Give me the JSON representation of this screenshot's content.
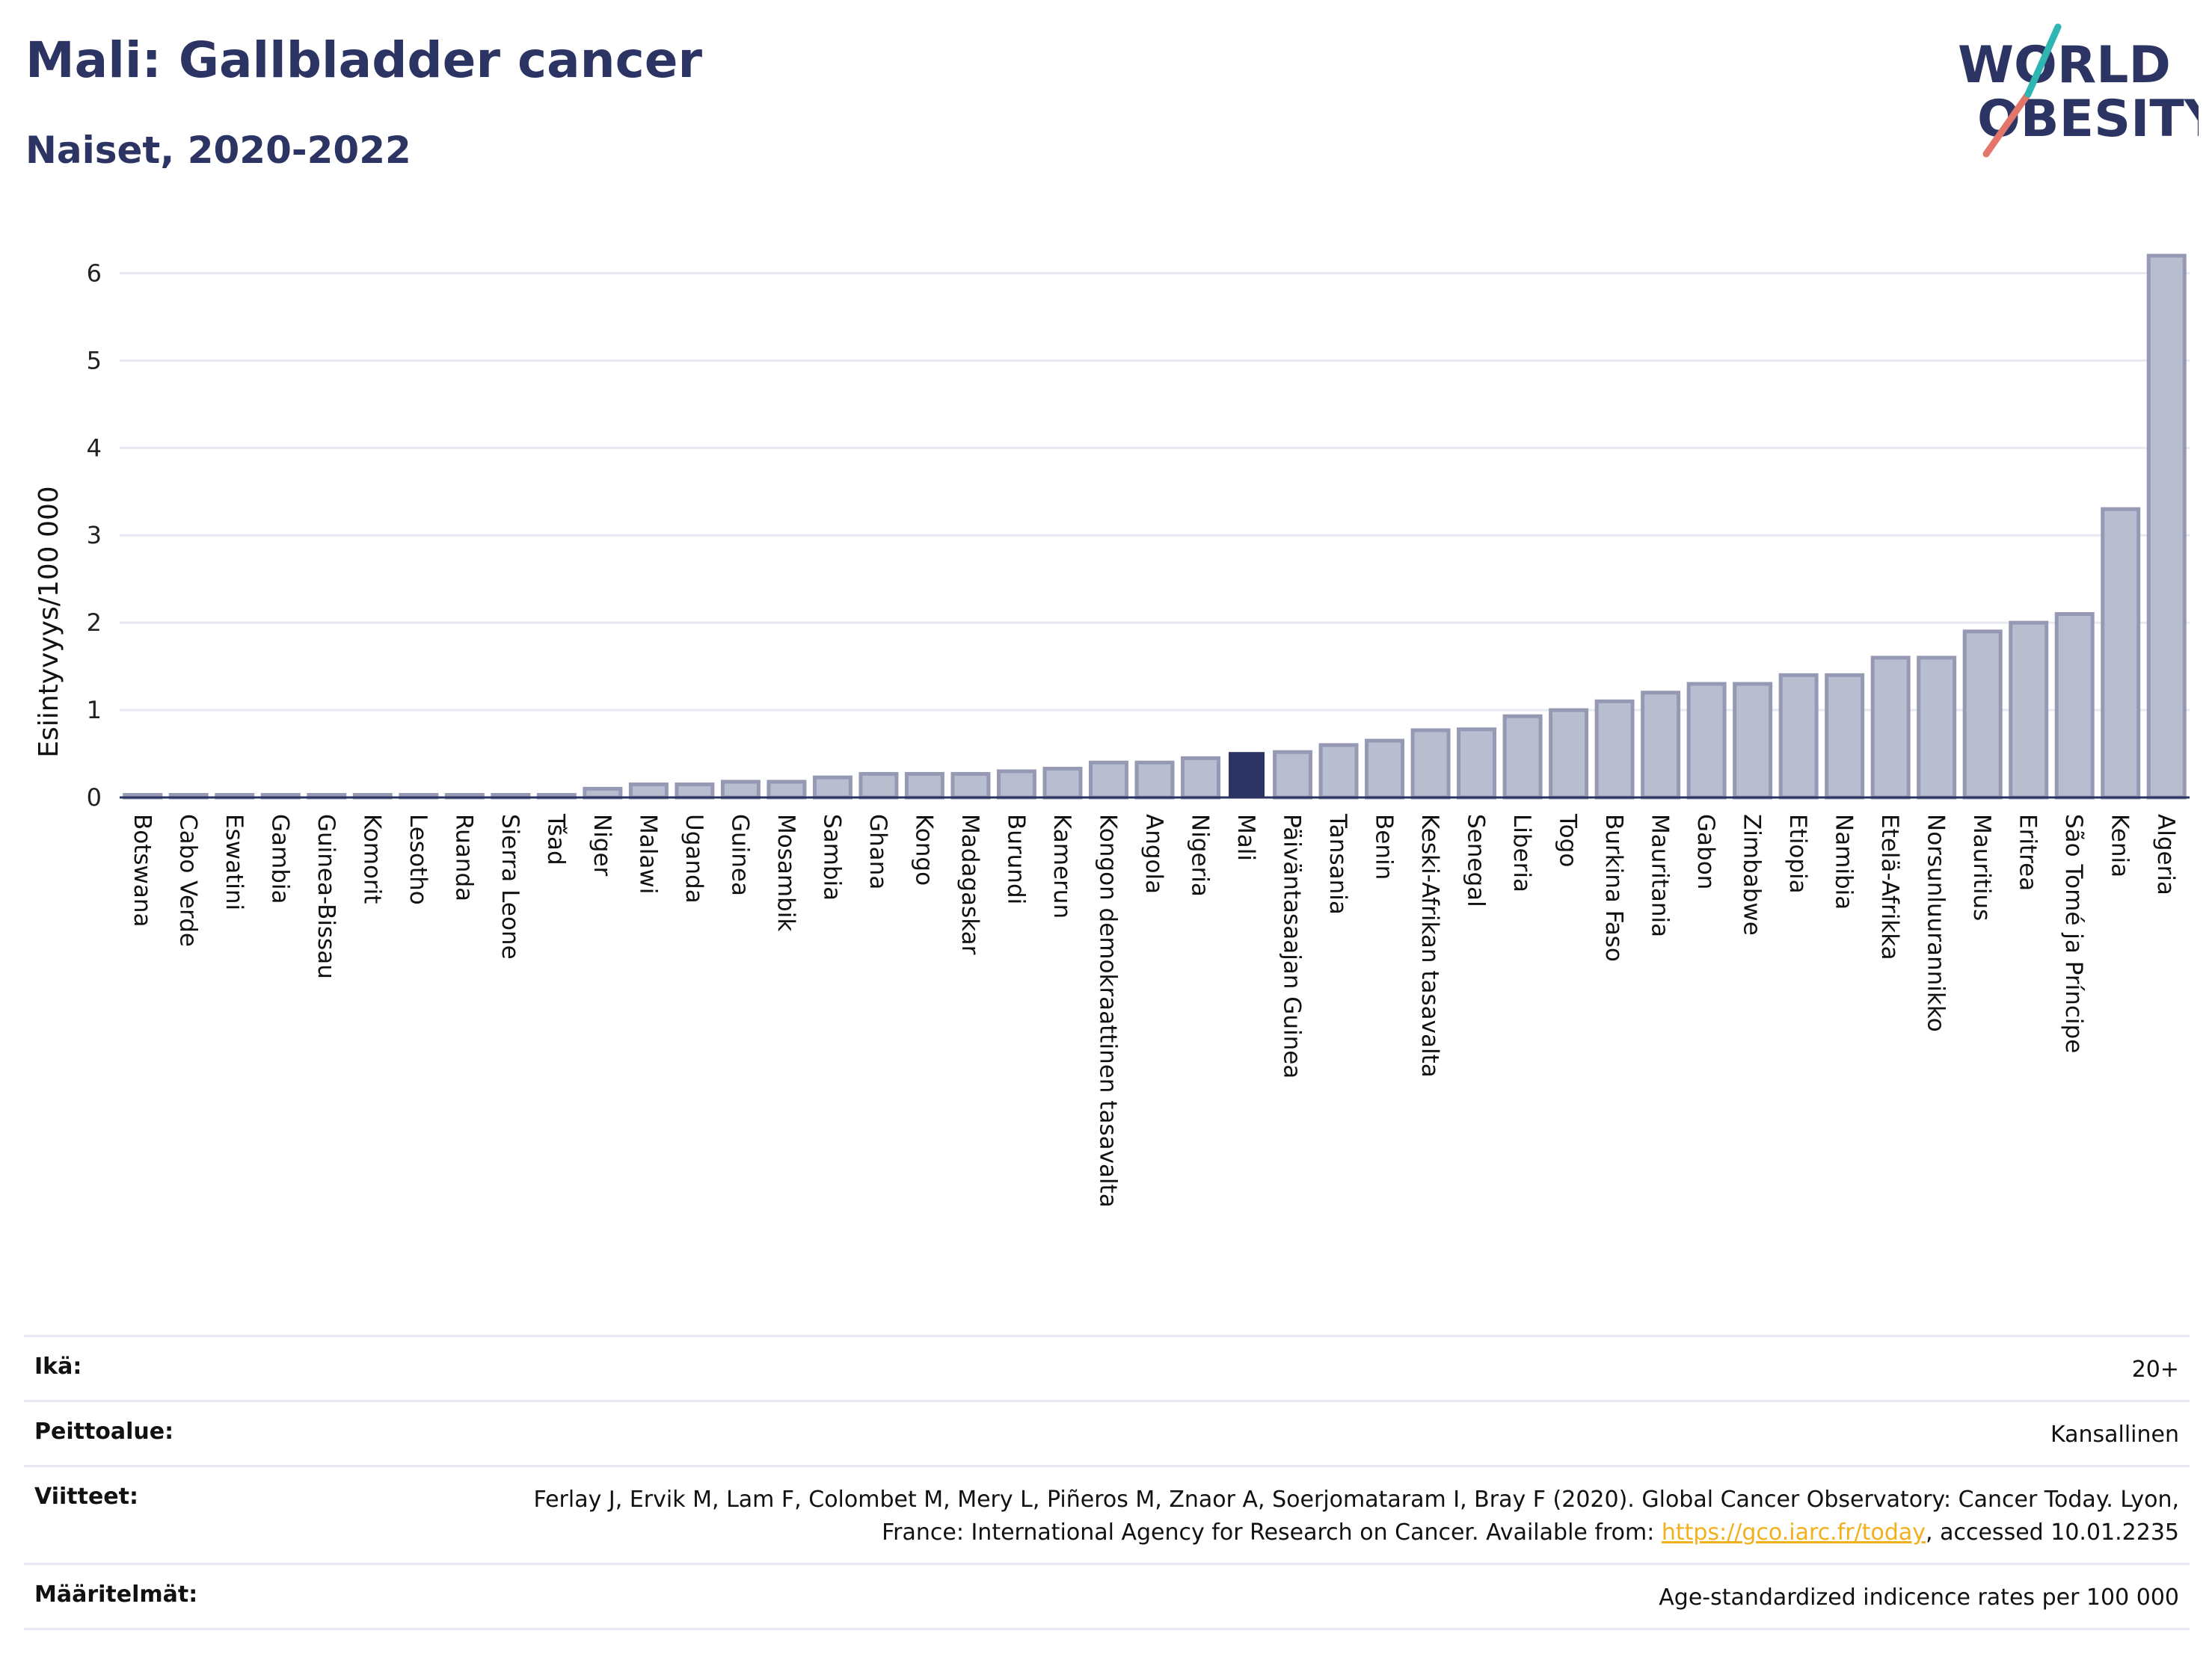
{
  "header": {
    "title": "Mali: Gallbladder cancer",
    "subtitle": "Naiset, 2020-2022"
  },
  "logo": {
    "line1": "WORLD",
    "line2": "OBESITY",
    "colors": [
      "#2b3462",
      "#e4756b",
      "#2fb6b3"
    ]
  },
  "colors": {
    "bar": "#b9bdd0",
    "bar_border": "#9599b3",
    "highlight": "#2b3462",
    "grid": "#e7e9f0"
  },
  "chart_data": {
    "type": "bar",
    "ylabel": "Esiintyvyys/100 000",
    "ylim": [
      0,
      6.5
    ],
    "yticks": [
      0,
      1,
      2,
      3,
      4,
      5,
      6
    ],
    "highlight": "Mali",
    "categories": [
      "Botswana",
      "Cabo Verde",
      "Eswatini",
      "Gambia",
      "Guinea-Bissau",
      "Komorit",
      "Lesotho",
      "Ruanda",
      "Sierra Leone",
      "Tšad",
      "Niger",
      "Malawi",
      "Uganda",
      "Guinea",
      "Mosambik",
      "Sambia",
      "Ghana",
      "Kongo",
      "Madagaskar",
      "Burundi",
      "Kamerun",
      "Kongon demokraattinen tasavalta",
      "Angola",
      "Nigeria",
      "Mali",
      "Päiväntasaajan Guinea",
      "Tansania",
      "Benin",
      "Keski-Afrikan tasavalta",
      "Senegal",
      "Liberia",
      "Togo",
      "Burkina Faso",
      "Mauritania",
      "Gabon",
      "Zimbabwe",
      "Etiopia",
      "Namibia",
      "Etelä-Afrikka",
      "Norsunluurannikko",
      "Mauritius",
      "Eritrea",
      "São Tomé ja Príncipe",
      "Kenia",
      "Algeria"
    ],
    "values": [
      0.03,
      0.03,
      0.03,
      0.03,
      0.03,
      0.03,
      0.03,
      0.03,
      0.03,
      0.03,
      0.1,
      0.15,
      0.15,
      0.18,
      0.18,
      0.23,
      0.27,
      0.27,
      0.27,
      0.3,
      0.33,
      0.4,
      0.4,
      0.45,
      0.52,
      0.52,
      0.6,
      0.65,
      0.77,
      0.78,
      0.93,
      1.0,
      1.1,
      1.2,
      1.3,
      1.3,
      1.4,
      1.4,
      1.6,
      1.6,
      1.9,
      2.0,
      2.1,
      3.3,
      6.2
    ]
  },
  "meta": [
    {
      "key": "Ikä:",
      "value": "20+"
    },
    {
      "key": "Peittoalue:",
      "value": "Kansallinen"
    },
    {
      "key": "Viitteet:",
      "value_pre": "Ferlay J, Ervik M, Lam F, Colombet M, Mery L, Piñeros M, Znaor A, Soerjomataram I, Bray F (2020). Global Cancer Observatory: Cancer Today. Lyon, France: International Agency for Research on Cancer. Available from: ",
      "link": "https://gco.iarc.fr/today",
      "value_post": ", accessed 10.01.2235"
    },
    {
      "key": "Määritelmät:",
      "value": "Age-standardized indicence rates per 100 000"
    }
  ]
}
